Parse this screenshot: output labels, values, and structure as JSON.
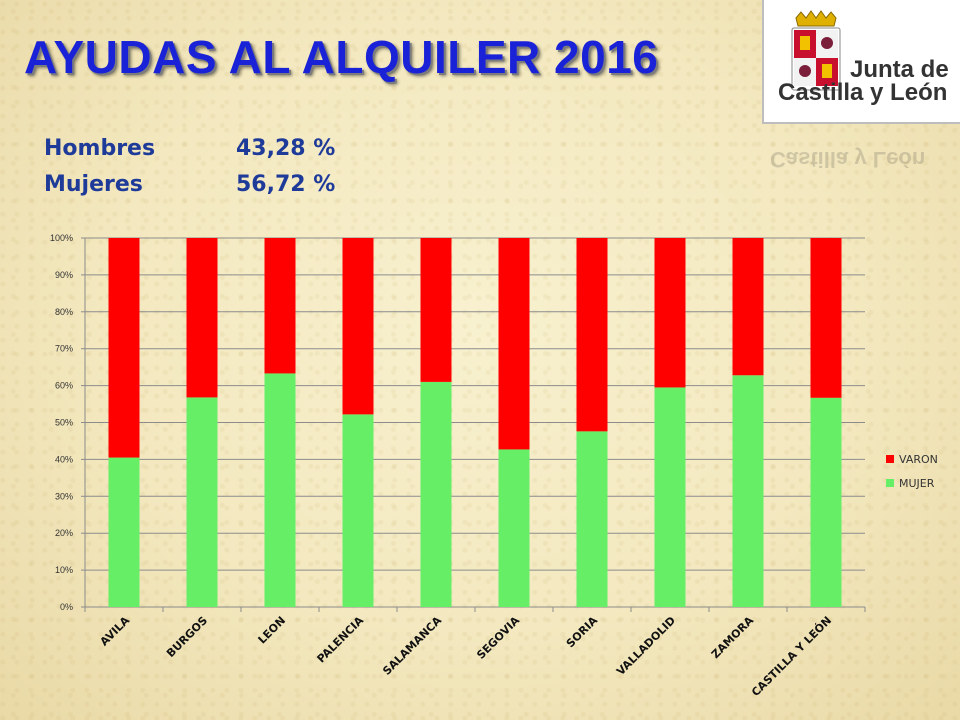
{
  "title": "AYUDAS AL ALQUILER 2016",
  "logo": {
    "line1": "Junta de",
    "line2": "Castilla y León"
  },
  "stats": [
    {
      "label": "Hombres",
      "value": "43,28 %"
    },
    {
      "label": "Mujeres",
      "value": "56,72 %"
    }
  ],
  "colors": {
    "title": "#1a22d8",
    "varon": "#ff0000",
    "mujer": "#66ee66",
    "stats": "#1f3b99"
  },
  "chart_data": {
    "type": "bar",
    "stacked": true,
    "categories": [
      "AVILA",
      "BURGOS",
      "LEON",
      "PALENCIA",
      "SALAMANCA",
      "SEGOVIA",
      "SORIA",
      "VALLADOLID",
      "ZAMORA",
      "CASTILLA Y LEÓN"
    ],
    "series": [
      {
        "name": "MUJER",
        "color": "#66ee66",
        "values": [
          40.5,
          56.8,
          63.3,
          52.2,
          61.0,
          42.7,
          47.6,
          59.5,
          62.8,
          56.7
        ]
      },
      {
        "name": "VARON",
        "color": "#ff0000",
        "values": [
          59.5,
          43.2,
          36.7,
          47.8,
          39.0,
          57.3,
          52.4,
          40.5,
          37.2,
          43.3
        ]
      }
    ],
    "ylim": [
      0,
      100
    ],
    "yticks": [
      "0%",
      "10%",
      "20%",
      "30%",
      "40%",
      "50%",
      "60%",
      "70%",
      "80%",
      "90%",
      "100%"
    ],
    "grid": true,
    "legend": "right"
  }
}
